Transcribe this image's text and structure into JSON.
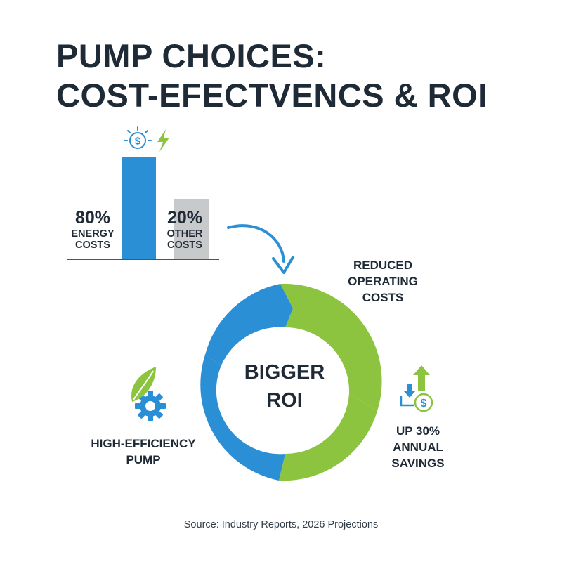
{
  "title": {
    "line1": "PUMP CHOICES:",
    "line2": "COST-EFECTVENCS & ROI"
  },
  "cost_split": {
    "energy": {
      "percent": 80,
      "percent_label": "80%",
      "line1": "ENERGY",
      "line2": "COSTS"
    },
    "other": {
      "percent": 20,
      "percent_label": "20%",
      "line1": "OTHER",
      "line2": "COSTS"
    }
  },
  "cycle": {
    "center_line1": "BIGGER",
    "center_line2": "ROI",
    "reduced": {
      "line1": "REDUCED",
      "line2": "OPERATING",
      "line3": "COSTS"
    },
    "savings": {
      "line1": "UP 30%",
      "line2": "ANNUAL",
      "line3": "SAVINGS"
    },
    "pump": {
      "line1": "HIGH-EFFICIENCY",
      "line2": "PUMP"
    }
  },
  "source": "Source: Industry Reports, 2026 Projections",
  "icons": {
    "bar_top": [
      "dollar-coin-icon",
      "lightning-icon"
    ],
    "pump": "leaf-gear-icon",
    "savings": "down-up-dollar-icon"
  },
  "colors": {
    "blue": "#2b8fd6",
    "green": "#8cc43f",
    "gray": "#c8c9cb",
    "dark": "#1f2a36"
  }
}
